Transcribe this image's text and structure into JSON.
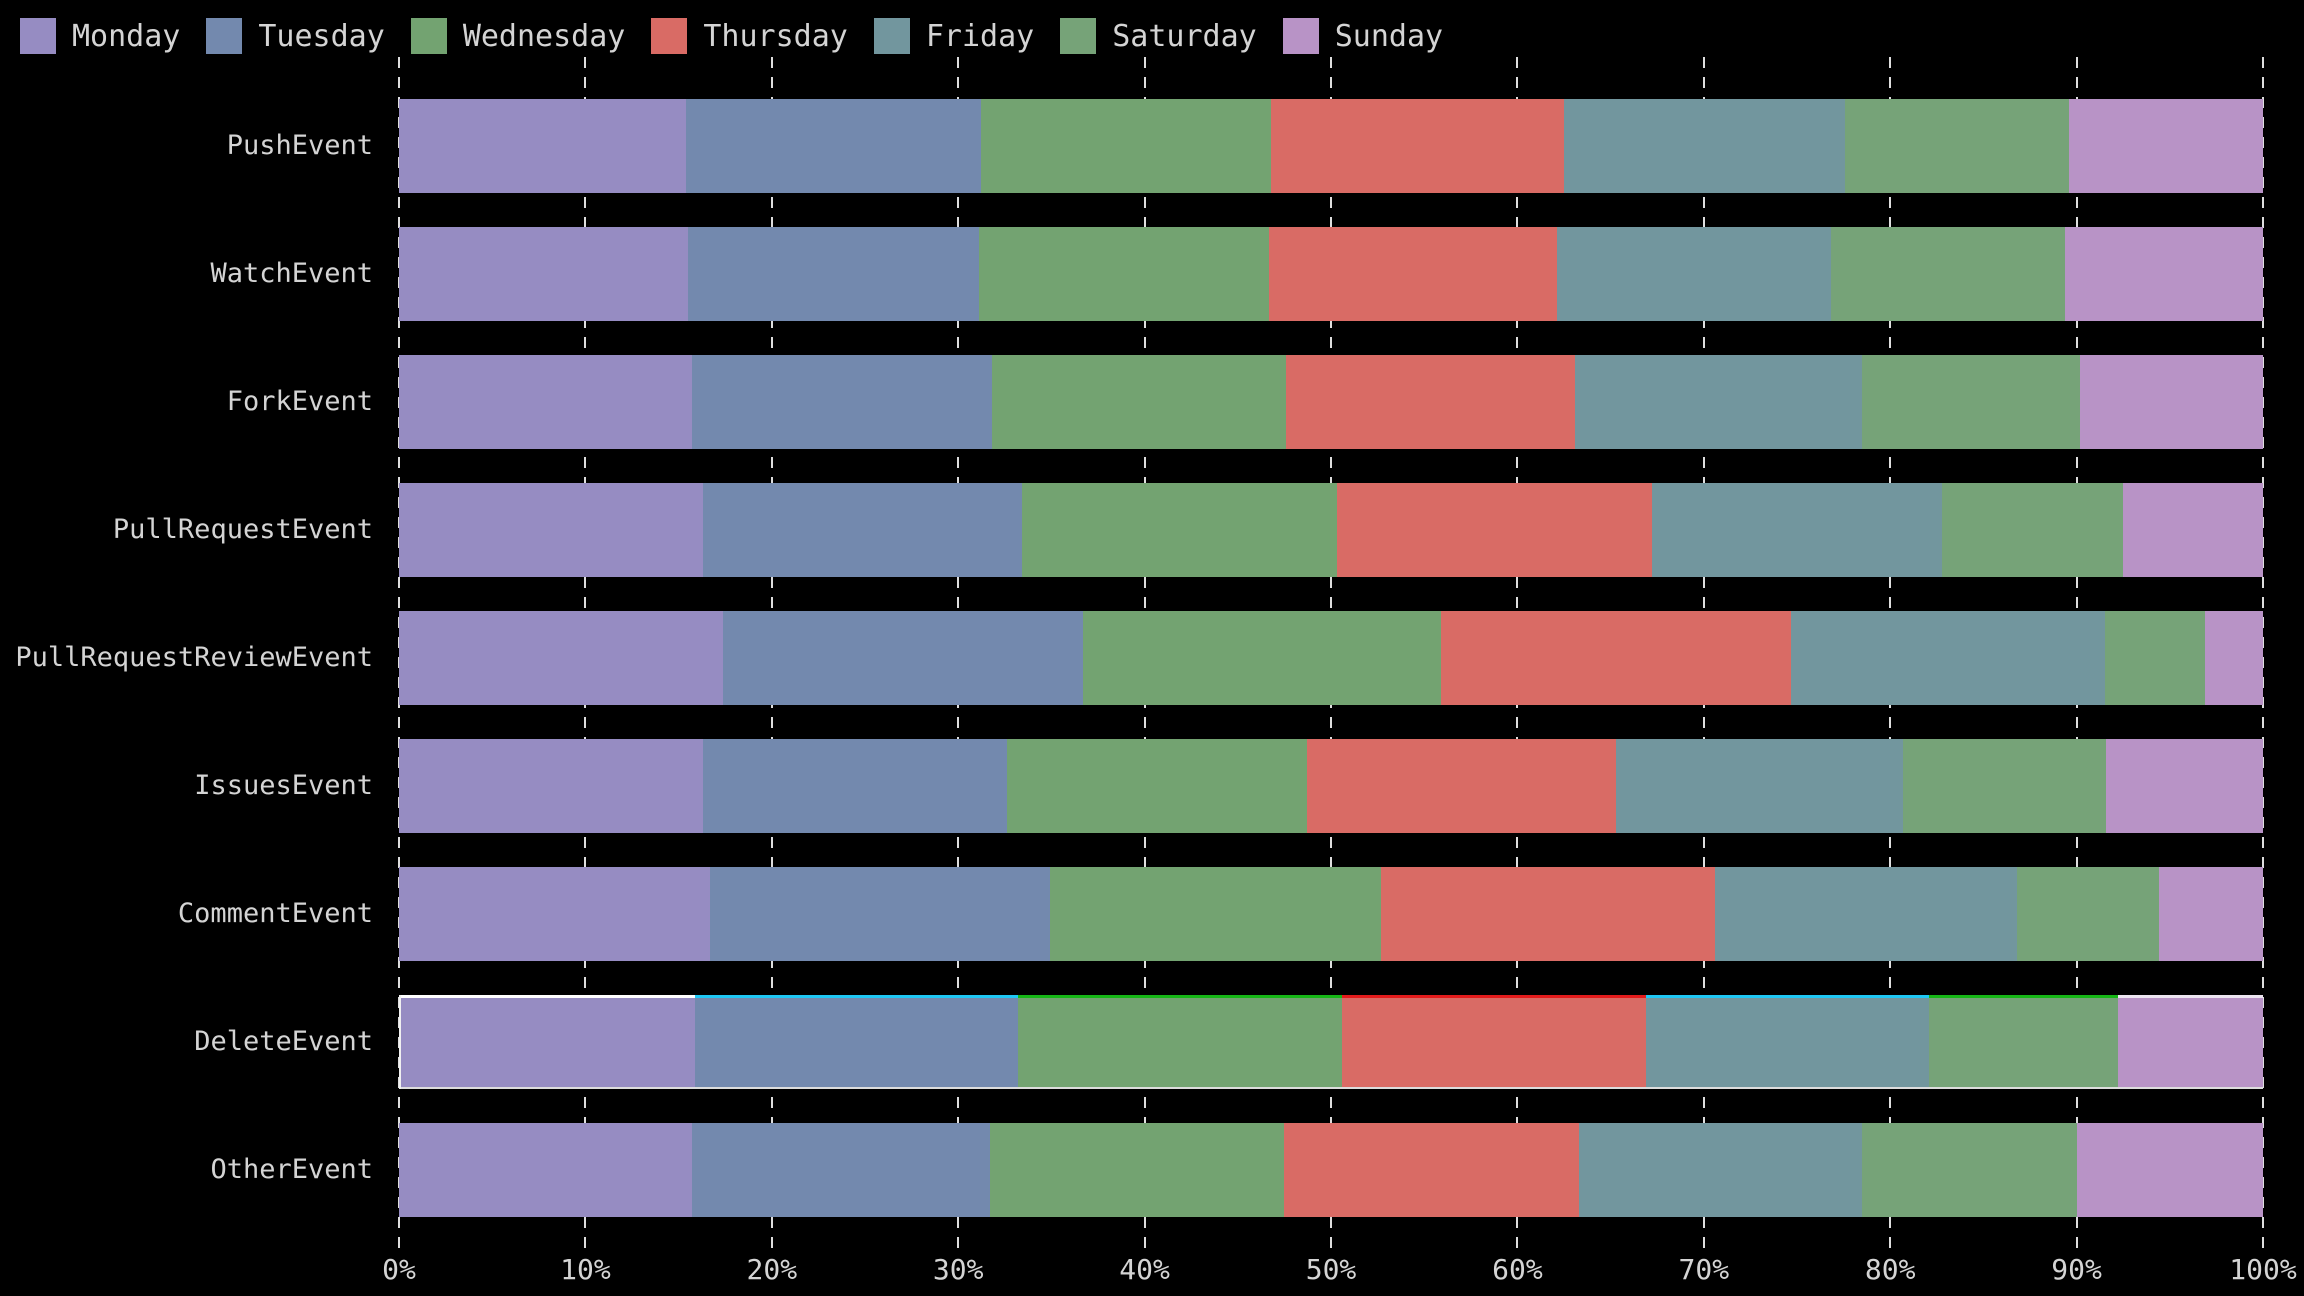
{
  "style": {
    "background": "#000000",
    "text_color": "#d4d4d4",
    "grid_color": "#dedede"
  },
  "chart_data": {
    "type": "bar",
    "orientation": "horizontal",
    "stacked": true,
    "normalized": true,
    "unit": "%",
    "title": "",
    "xlabel": "",
    "ylabel": "",
    "xlim": [
      0,
      100
    ],
    "x_ticks": [
      "0%",
      "10%",
      "20%",
      "30%",
      "40%",
      "50%",
      "60%",
      "70%",
      "80%",
      "90%",
      "100%"
    ],
    "grid": "dashed-vertical",
    "legend_position": "top-left",
    "categories": [
      "PushEvent",
      "WatchEvent",
      "ForkEvent",
      "PullRequestEvent",
      "PullRequestReviewEvent",
      "IssuesEvent",
      "CommentEvent",
      "DeleteEvent",
      "OtherEvent"
    ],
    "series": [
      {
        "name": "Monday",
        "color": "#968cc2",
        "values": [
          15.4,
          15.5,
          15.7,
          16.3,
          17.4,
          16.3,
          16.7,
          15.9,
          15.7
        ]
      },
      {
        "name": "Tuesday",
        "color": "#7389ae",
        "values": [
          15.8,
          15.6,
          16.1,
          17.1,
          19.3,
          16.3,
          18.2,
          17.3,
          16.0
        ]
      },
      {
        "name": "Wednesday",
        "color": "#73a371",
        "values": [
          15.6,
          15.6,
          15.8,
          16.9,
          19.2,
          16.1,
          17.8,
          17.4,
          15.8
        ]
      },
      {
        "name": "Thursday",
        "color": "#d96b65",
        "values": [
          15.7,
          15.4,
          15.5,
          16.9,
          18.8,
          16.6,
          17.9,
          16.3,
          15.8
        ]
      },
      {
        "name": "Friday",
        "color": "#72969e",
        "values": [
          15.1,
          14.7,
          15.4,
          15.6,
          16.8,
          15.4,
          16.2,
          15.2,
          15.2
        ]
      },
      {
        "name": "Saturday",
        "color": "#76a378",
        "values": [
          12.0,
          12.6,
          11.7,
          9.7,
          5.4,
          10.9,
          7.6,
          10.1,
          11.5
        ]
      },
      {
        "name": "Sunday",
        "color": "#b893c6",
        "values": [
          10.4,
          10.6,
          9.8,
          7.5,
          3.1,
          8.4,
          5.6,
          7.8,
          10.0
        ]
      }
    ],
    "highlight_row": {
      "category": "DeleteEvent",
      "top_edge_colors": [
        "#ffffff",
        "#1fc7f4",
        "#16b616",
        "#e31b1b",
        "#1fc7f4",
        "#16b616",
        "#ece4f0"
      ],
      "bottom_edge_color": "#dcdcdc",
      "left_edge_color": "#f0f0f0"
    }
  }
}
